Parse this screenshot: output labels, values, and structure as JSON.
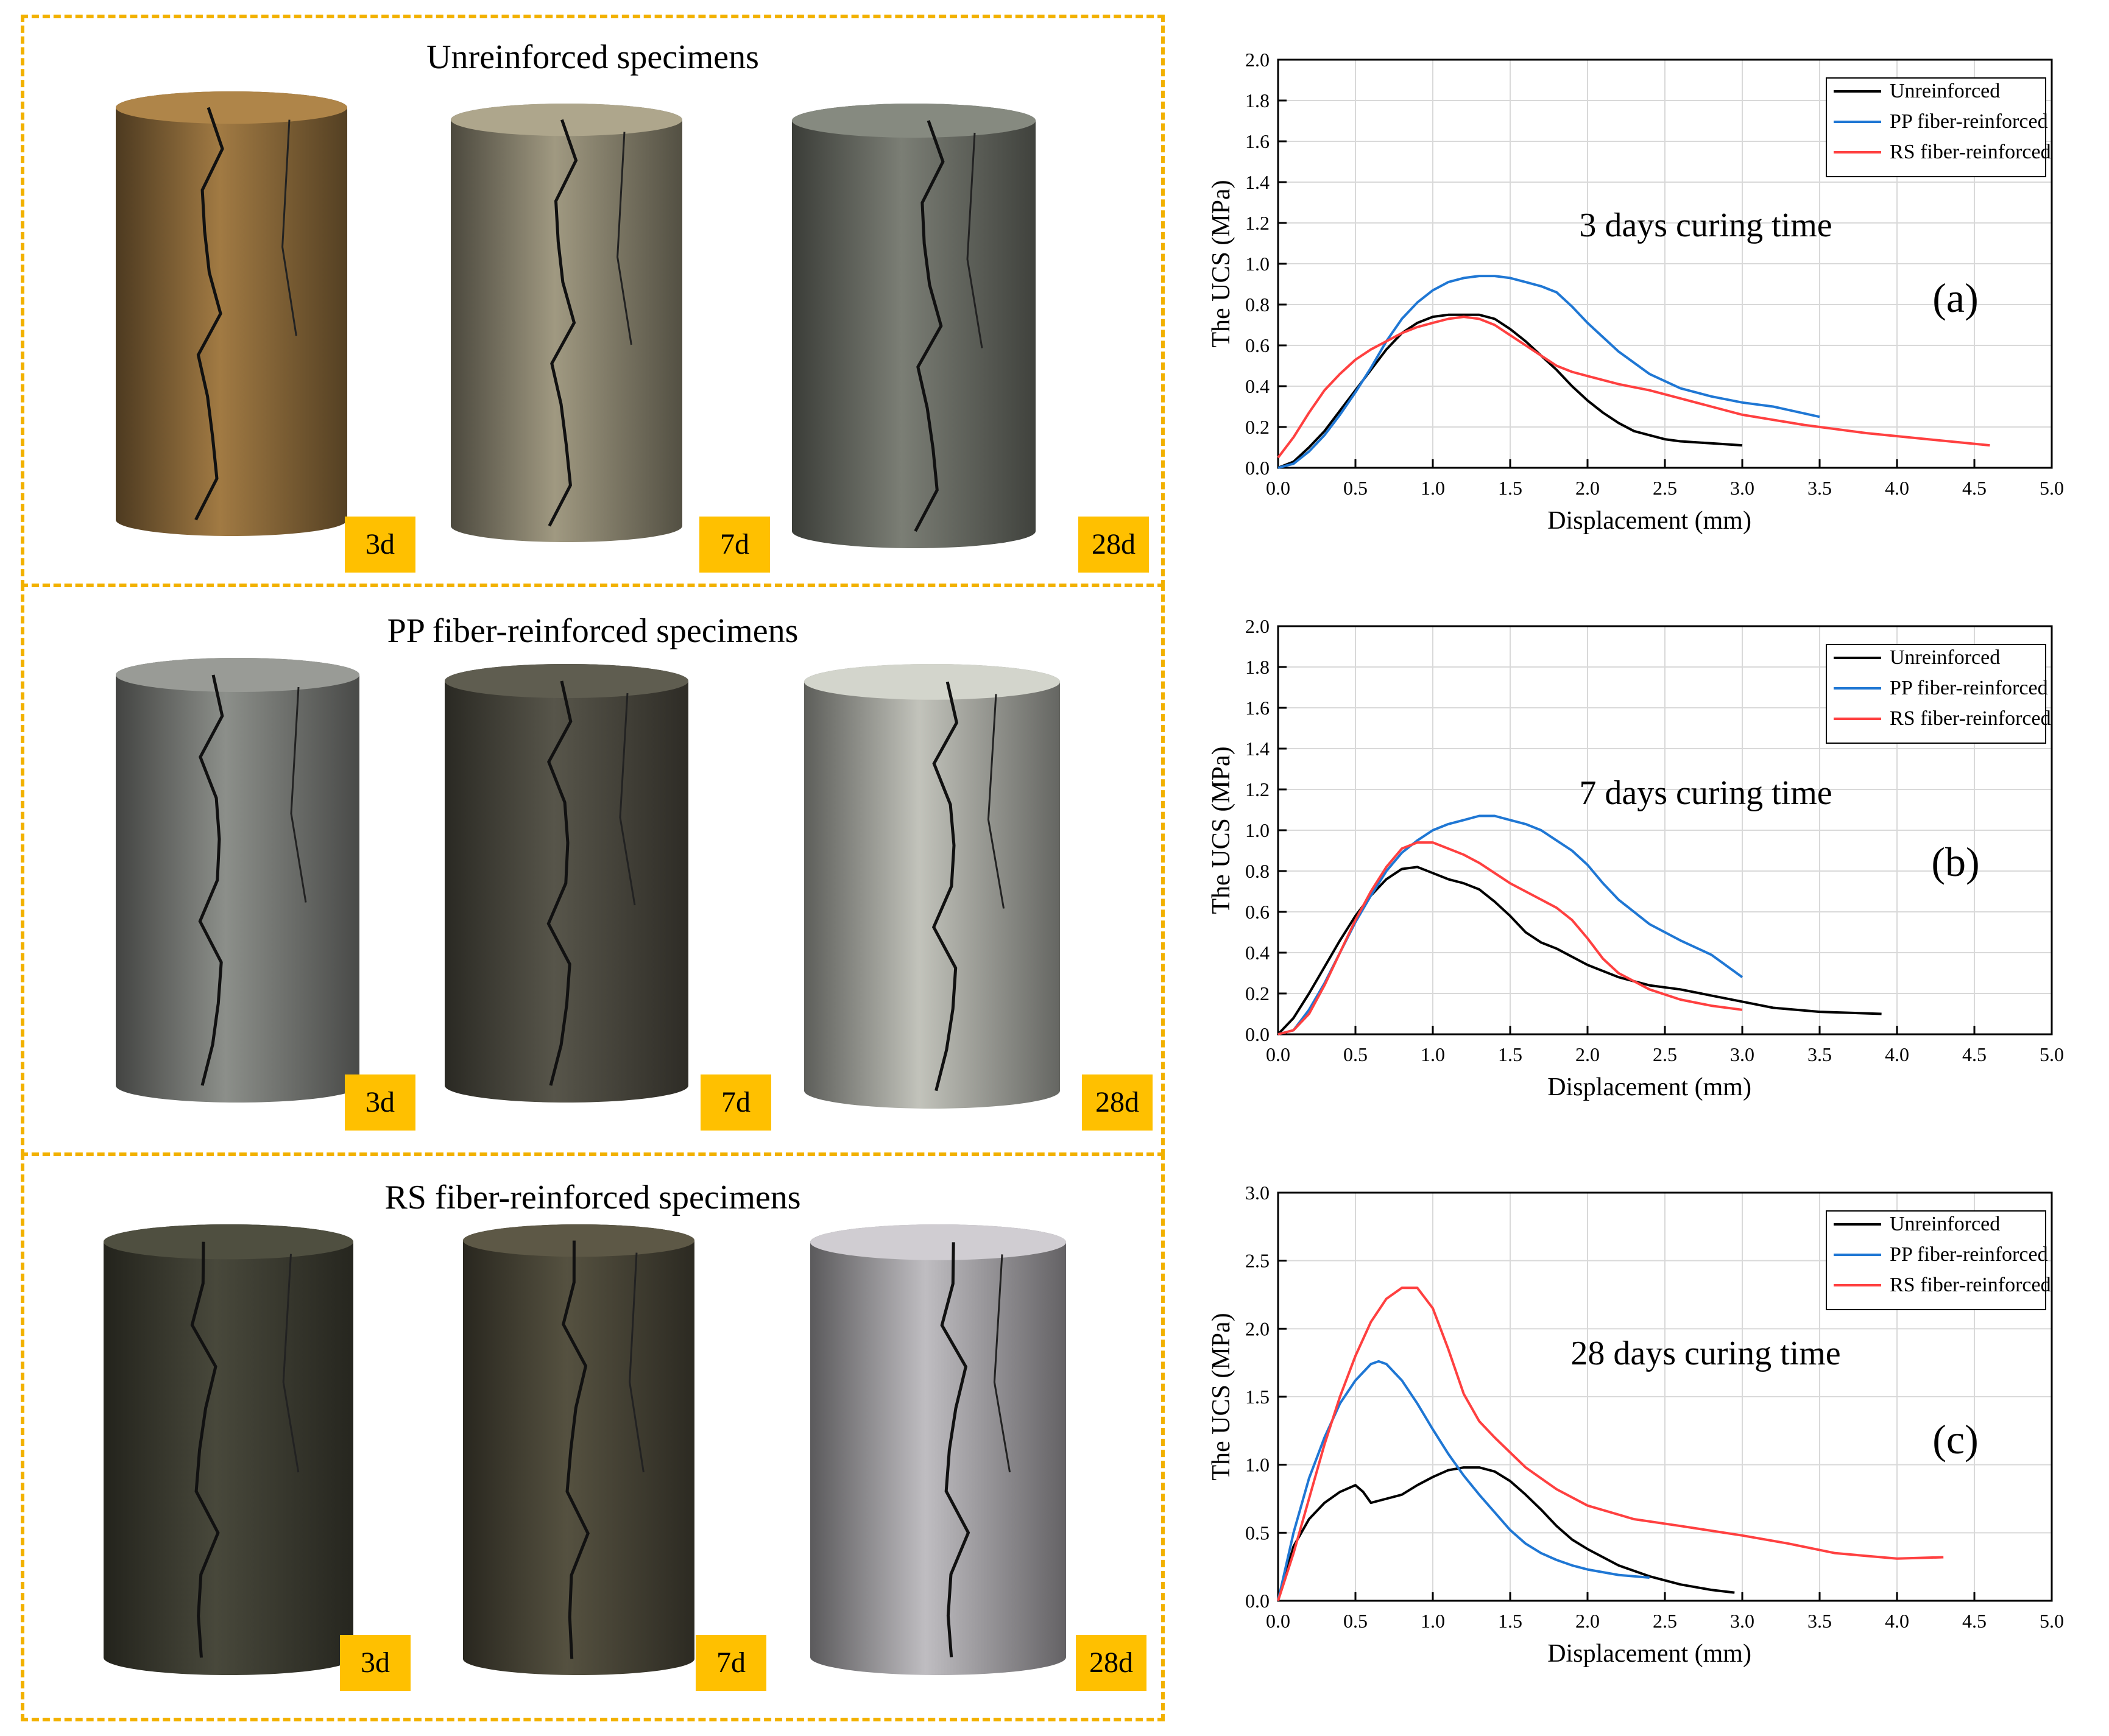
{
  "specimen_panels": [
    {
      "title": "Unreinforced specimens",
      "specimens": [
        {
          "day": "3d",
          "icon": "cracked-cylinder-icon",
          "color": "#8c6a3a"
        },
        {
          "day": "7d",
          "icon": "cracked-cylinder-icon",
          "color": "#8b8570"
        },
        {
          "day": "28d",
          "icon": "cracked-cylinder-icon",
          "color": "#6b6e66"
        }
      ]
    },
    {
      "title": "PP fiber-reinforced specimens",
      "specimens": [
        {
          "day": "3d",
          "icon": "cracked-cylinder-icon",
          "color": "#7a7c78"
        },
        {
          "day": "7d",
          "icon": "cracked-cylinder-icon",
          "color": "#4c4a40"
        },
        {
          "day": "28d",
          "icon": "cracked-cylinder-icon",
          "color": "#a9aaa3"
        }
      ]
    },
    {
      "title": "RS fiber-reinforced specimens",
      "specimens": [
        {
          "day": "3d",
          "icon": "cracked-cylinder-icon",
          "color": "#3f3f33"
        },
        {
          "day": "7d",
          "icon": "cracked-cylinder-icon",
          "color": "#4a4638"
        },
        {
          "day": "28d",
          "icon": "cracked-cylinder-icon",
          "color": "#a6a4a8"
        }
      ]
    }
  ],
  "chart_data": [
    {
      "type": "line",
      "title": "3 days curing time",
      "panel_label": "(a)",
      "xlabel": "Displacement (mm)",
      "ylabel": "The UCS (MPa)",
      "xlim": [
        0,
        5.0
      ],
      "ylim": [
        0,
        2.0
      ],
      "xticks": [
        "0.0",
        "0.5",
        "1.0",
        "1.5",
        "2.0",
        "2.5",
        "3.0",
        "3.5",
        "4.0",
        "4.5",
        "5.0"
      ],
      "yticks": [
        "0.0",
        "0.2",
        "0.4",
        "0.6",
        "0.8",
        "1.0",
        "1.2",
        "1.4",
        "1.6",
        "1.8",
        "2.0"
      ],
      "grid": true,
      "legend": "top-right",
      "series": [
        {
          "name": "Unreinforced",
          "color": "#000000",
          "x": [
            0.0,
            0.1,
            0.2,
            0.3,
            0.4,
            0.5,
            0.6,
            0.7,
            0.8,
            0.9,
            1.0,
            1.1,
            1.2,
            1.3,
            1.4,
            1.5,
            1.6,
            1.7,
            1.8,
            1.9,
            2.0,
            2.1,
            2.2,
            2.3,
            2.4,
            2.5,
            2.6,
            2.8,
            3.0
          ],
          "y": [
            0.0,
            0.03,
            0.1,
            0.18,
            0.28,
            0.38,
            0.48,
            0.58,
            0.66,
            0.71,
            0.74,
            0.75,
            0.75,
            0.75,
            0.73,
            0.68,
            0.62,
            0.55,
            0.48,
            0.4,
            0.33,
            0.27,
            0.22,
            0.18,
            0.16,
            0.14,
            0.13,
            0.12,
            0.11
          ]
        },
        {
          "name": "PP fiber-reinforced",
          "color": "#1f77d4",
          "x": [
            0.0,
            0.1,
            0.2,
            0.3,
            0.4,
            0.5,
            0.6,
            0.7,
            0.8,
            0.9,
            1.0,
            1.1,
            1.2,
            1.3,
            1.4,
            1.5,
            1.6,
            1.7,
            1.8,
            1.9,
            2.0,
            2.2,
            2.4,
            2.6,
            2.8,
            3.0,
            3.2,
            3.5
          ],
          "y": [
            0.0,
            0.02,
            0.08,
            0.16,
            0.26,
            0.37,
            0.49,
            0.62,
            0.73,
            0.81,
            0.87,
            0.91,
            0.93,
            0.94,
            0.94,
            0.93,
            0.91,
            0.89,
            0.86,
            0.79,
            0.71,
            0.57,
            0.46,
            0.39,
            0.35,
            0.32,
            0.3,
            0.25
          ]
        },
        {
          "name": "RS fiber-reinforced",
          "color": "#ff4040",
          "x": [
            0.0,
            0.1,
            0.2,
            0.3,
            0.4,
            0.5,
            0.6,
            0.7,
            0.8,
            0.9,
            1.0,
            1.1,
            1.2,
            1.3,
            1.4,
            1.5,
            1.6,
            1.7,
            1.8,
            1.9,
            2.0,
            2.2,
            2.4,
            2.6,
            2.8,
            3.0,
            3.4,
            3.8,
            4.2,
            4.6
          ],
          "y": [
            0.05,
            0.15,
            0.27,
            0.38,
            0.46,
            0.53,
            0.58,
            0.62,
            0.66,
            0.69,
            0.71,
            0.73,
            0.74,
            0.73,
            0.7,
            0.65,
            0.6,
            0.55,
            0.5,
            0.47,
            0.45,
            0.41,
            0.38,
            0.34,
            0.3,
            0.26,
            0.21,
            0.17,
            0.14,
            0.11
          ]
        }
      ]
    },
    {
      "type": "line",
      "title": "7 days curing time",
      "panel_label": "(b)",
      "xlabel": "Displacement (mm)",
      "ylabel": "The UCS (MPa)",
      "xlim": [
        0,
        5.0
      ],
      "ylim": [
        0,
        2.0
      ],
      "xticks": [
        "0.0",
        "0.5",
        "1.0",
        "1.5",
        "2.0",
        "2.5",
        "3.0",
        "3.5",
        "4.0",
        "4.5",
        "5.0"
      ],
      "yticks": [
        "0.0",
        "0.2",
        "0.4",
        "0.6",
        "0.8",
        "1.0",
        "1.2",
        "1.4",
        "1.6",
        "1.8",
        "2.0"
      ],
      "grid": true,
      "legend": "top-right",
      "series": [
        {
          "name": "Unreinforced",
          "color": "#000000",
          "x": [
            0.0,
            0.1,
            0.2,
            0.3,
            0.4,
            0.5,
            0.6,
            0.7,
            0.8,
            0.9,
            1.0,
            1.1,
            1.2,
            1.3,
            1.4,
            1.5,
            1.6,
            1.7,
            1.8,
            2.0,
            2.2,
            2.4,
            2.6,
            2.8,
            3.0,
            3.2,
            3.5,
            3.9
          ],
          "y": [
            0.0,
            0.08,
            0.2,
            0.33,
            0.46,
            0.58,
            0.68,
            0.76,
            0.81,
            0.82,
            0.79,
            0.76,
            0.74,
            0.71,
            0.65,
            0.58,
            0.5,
            0.45,
            0.42,
            0.34,
            0.28,
            0.24,
            0.22,
            0.19,
            0.16,
            0.13,
            0.11,
            0.1
          ]
        },
        {
          "name": "PP fiber-reinforced",
          "color": "#1f77d4",
          "x": [
            0.0,
            0.1,
            0.2,
            0.3,
            0.4,
            0.5,
            0.6,
            0.7,
            0.8,
            0.9,
            1.0,
            1.1,
            1.2,
            1.3,
            1.4,
            1.5,
            1.6,
            1.7,
            1.8,
            1.9,
            2.0,
            2.1,
            2.2,
            2.4,
            2.6,
            2.8,
            3.0
          ],
          "y": [
            0.0,
            0.02,
            0.12,
            0.25,
            0.4,
            0.55,
            0.68,
            0.8,
            0.89,
            0.95,
            1.0,
            1.03,
            1.05,
            1.07,
            1.07,
            1.05,
            1.03,
            1.0,
            0.95,
            0.9,
            0.83,
            0.74,
            0.66,
            0.54,
            0.46,
            0.39,
            0.28
          ]
        },
        {
          "name": "RS fiber-reinforced",
          "color": "#ff4040",
          "x": [
            0.0,
            0.1,
            0.2,
            0.3,
            0.4,
            0.5,
            0.6,
            0.7,
            0.8,
            0.9,
            1.0,
            1.1,
            1.2,
            1.3,
            1.4,
            1.5,
            1.6,
            1.7,
            1.8,
            1.9,
            2.0,
            2.1,
            2.2,
            2.4,
            2.6,
            2.8,
            3.0
          ],
          "y": [
            0.0,
            0.02,
            0.1,
            0.24,
            0.4,
            0.56,
            0.7,
            0.82,
            0.91,
            0.94,
            0.94,
            0.91,
            0.88,
            0.84,
            0.79,
            0.74,
            0.7,
            0.66,
            0.62,
            0.56,
            0.47,
            0.37,
            0.3,
            0.22,
            0.17,
            0.14,
            0.12
          ]
        }
      ]
    },
    {
      "type": "line",
      "title": "28 days curing time",
      "panel_label": "(c)",
      "xlabel": "Displacement (mm)",
      "ylabel": "The UCS (MPa)",
      "xlim": [
        0,
        5.0
      ],
      "ylim": [
        0,
        3.0
      ],
      "xticks": [
        "0.0",
        "0.5",
        "1.0",
        "1.5",
        "2.0",
        "2.5",
        "3.0",
        "3.5",
        "4.0",
        "4.5",
        "5.0"
      ],
      "yticks": [
        "0.0",
        "0.5",
        "1.0",
        "1.5",
        "2.0",
        "2.5",
        "3.0"
      ],
      "grid": true,
      "legend": "top-right",
      "series": [
        {
          "name": "Unreinforced",
          "color": "#000000",
          "x": [
            0.0,
            0.1,
            0.2,
            0.3,
            0.4,
            0.5,
            0.55,
            0.6,
            0.7,
            0.8,
            0.9,
            1.0,
            1.1,
            1.2,
            1.3,
            1.4,
            1.5,
            1.6,
            1.7,
            1.8,
            1.9,
            2.0,
            2.1,
            2.2,
            2.4,
            2.6,
            2.8,
            2.95
          ],
          "y": [
            0.0,
            0.4,
            0.6,
            0.72,
            0.8,
            0.85,
            0.8,
            0.72,
            0.75,
            0.78,
            0.85,
            0.91,
            0.96,
            0.98,
            0.98,
            0.95,
            0.88,
            0.78,
            0.67,
            0.55,
            0.45,
            0.38,
            0.32,
            0.26,
            0.18,
            0.12,
            0.08,
            0.06
          ]
        },
        {
          "name": "PP fiber-reinforced",
          "color": "#1f77d4",
          "x": [
            0.0,
            0.1,
            0.2,
            0.3,
            0.4,
            0.5,
            0.6,
            0.65,
            0.7,
            0.8,
            0.9,
            1.0,
            1.1,
            1.2,
            1.3,
            1.4,
            1.5,
            1.6,
            1.7,
            1.8,
            1.9,
            2.0,
            2.2,
            2.4
          ],
          "y": [
            0.0,
            0.5,
            0.9,
            1.2,
            1.45,
            1.62,
            1.74,
            1.76,
            1.74,
            1.62,
            1.45,
            1.26,
            1.08,
            0.92,
            0.78,
            0.65,
            0.52,
            0.42,
            0.35,
            0.3,
            0.26,
            0.23,
            0.19,
            0.17
          ]
        },
        {
          "name": "RS fiber-reinforced",
          "color": "#ff4040",
          "x": [
            0.0,
            0.1,
            0.2,
            0.3,
            0.4,
            0.5,
            0.6,
            0.7,
            0.8,
            0.9,
            1.0,
            1.1,
            1.2,
            1.3,
            1.4,
            1.6,
            1.8,
            2.0,
            2.3,
            2.6,
            3.0,
            3.3,
            3.6,
            4.0,
            4.3
          ],
          "y": [
            0.0,
            0.35,
            0.75,
            1.15,
            1.5,
            1.8,
            2.05,
            2.22,
            2.3,
            2.3,
            2.15,
            1.85,
            1.52,
            1.32,
            1.2,
            0.98,
            0.82,
            0.7,
            0.6,
            0.55,
            0.48,
            0.42,
            0.35,
            0.31,
            0.32
          ]
        }
      ]
    }
  ]
}
